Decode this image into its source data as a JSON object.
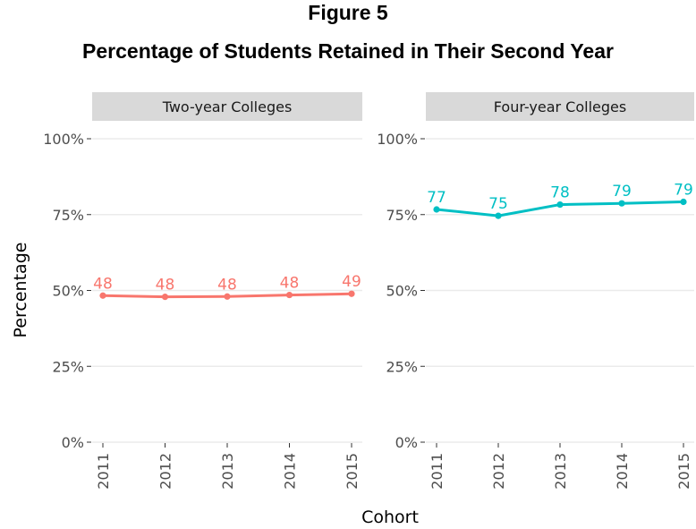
{
  "figure": {
    "label": "Figure 5",
    "title": "Percentage of Students Retained in Their Second Year"
  },
  "colors": {
    "two_year": "#F8766D",
    "four_year": "#00BFC4",
    "strip_fill": "#D9D9D9",
    "grid": "#EBEBEB"
  },
  "chart_data": {
    "type": "line",
    "xlabel": "Cohort",
    "ylabel": "Percentage",
    "ylim": [
      0,
      100
    ],
    "y_ticks": [
      "0%",
      "25%",
      "50%",
      "75%",
      "100%"
    ],
    "x": [
      "2011",
      "2012",
      "2013",
      "2014",
      "2015"
    ],
    "grid": true,
    "facets": [
      {
        "strip_label": "Two-year Colleges",
        "values": [
          48.3,
          47.9,
          48.0,
          48.5,
          48.9
        ],
        "data_labels": [
          "48",
          "48",
          "48",
          "48",
          "49"
        ],
        "color": "#F8766D"
      },
      {
        "strip_label": "Four-year Colleges",
        "values": [
          76.7,
          74.6,
          78.3,
          78.7,
          79.2
        ],
        "data_labels": [
          "77",
          "75",
          "78",
          "79",
          "79"
        ],
        "color": "#00BFC4"
      }
    ]
  }
}
